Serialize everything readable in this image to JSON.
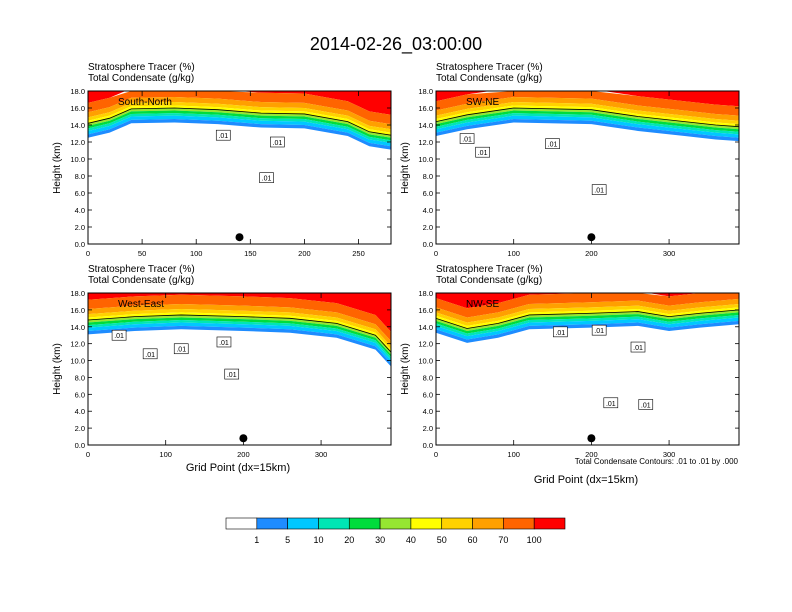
{
  "title": "2014-02-26_03:00:00",
  "header_line1": "Stratosphere Tracer   (%)",
  "header_line2": "Total Condensate   (g/kg)",
  "ylabel": "Height (km)",
  "xlabel": "Grid Point (dx=15km)",
  "contour_note": "Total Condensate Contours: .01 to .01 by .000",
  "colorbar": {
    "colors": [
      "#ffffff",
      "#1e8cff",
      "#00c8ff",
      "#00e6b4",
      "#00dc3c",
      "#96e632",
      "#ffff00",
      "#ffd200",
      "#ffa000",
      "#ff6400",
      "#ff0000"
    ],
    "labels": [
      "1",
      "5",
      "10",
      "20",
      "30",
      "40",
      "50",
      "60",
      "70",
      "100"
    ]
  },
  "chart_data": [
    {
      "type": "heatmap",
      "label": "South-North",
      "xlim": [
        0,
        280
      ],
      "xticks": [
        "0",
        "50",
        "100",
        "150",
        "200",
        "250"
      ],
      "ylim": [
        0,
        18
      ],
      "yticks": [
        "0.0",
        "2.0",
        "4.0",
        "6.0",
        "8.0",
        "10.0",
        "12.0",
        "14.0",
        "16.0",
        "18.0"
      ],
      "tropopause_km": [
        [
          0,
          14.6
        ],
        [
          20,
          15.2
        ],
        [
          40,
          16.3
        ],
        [
          80,
          16.4
        ],
        [
          120,
          16.2
        ],
        [
          160,
          15.8
        ],
        [
          200,
          15.7
        ],
        [
          240,
          14.8
        ],
        [
          260,
          13.6
        ],
        [
          280,
          13.2
        ]
      ],
      "contour_labels": [
        ".01",
        ".01",
        ".01"
      ],
      "marker_x": 140
    },
    {
      "type": "heatmap",
      "label": "SW-NE",
      "xlim": [
        0,
        390
      ],
      "xticks": [
        "0",
        "100",
        "200",
        "300"
      ],
      "ylim": [
        0,
        18
      ],
      "yticks": [
        "0.0",
        "2.0",
        "4.0",
        "6.0",
        "8.0",
        "10.0",
        "12.0",
        "14.0",
        "16.0",
        "18.0"
      ],
      "tropopause_km": [
        [
          0,
          14.8
        ],
        [
          40,
          15.6
        ],
        [
          100,
          16.4
        ],
        [
          200,
          16.2
        ],
        [
          260,
          15.4
        ],
        [
          320,
          14.8
        ],
        [
          360,
          14.4
        ],
        [
          390,
          14.2
        ]
      ],
      "contour_labels": [
        ".01",
        ".01",
        ".01",
        ".01"
      ],
      "marker_x": 200
    },
    {
      "type": "heatmap",
      "label": "West-East",
      "xlim": [
        0,
        390
      ],
      "xticks": [
        "0",
        "100",
        "200",
        "300"
      ],
      "ylim": [
        0,
        18
      ],
      "yticks": [
        "0.0",
        "2.0",
        "4.0",
        "6.0",
        "8.0",
        "10.0",
        "12.0",
        "14.0",
        "16.0",
        "18.0"
      ],
      "tropopause_km": [
        [
          0,
          15.2
        ],
        [
          60,
          15.6
        ],
        [
          120,
          15.8
        ],
        [
          200,
          15.6
        ],
        [
          260,
          15.4
        ],
        [
          320,
          14.8
        ],
        [
          370,
          13.4
        ],
        [
          390,
          11.4
        ]
      ],
      "contour_labels": [
        ".01",
        ".01",
        ".01",
        ".01",
        ".01"
      ],
      "marker_x": 200
    },
    {
      "type": "heatmap",
      "label": "NW-SE",
      "xlim": [
        0,
        390
      ],
      "xticks": [
        "0",
        "100",
        "200",
        "300"
      ],
      "ylim": [
        0,
        18
      ],
      "yticks": [
        "0.0",
        "2.0",
        "4.0",
        "6.0",
        "8.0",
        "10.0",
        "12.0",
        "14.0",
        "16.0",
        "18.0"
      ],
      "tropopause_km": [
        [
          0,
          15.4
        ],
        [
          40,
          14.2
        ],
        [
          80,
          14.8
        ],
        [
          120,
          15.8
        ],
        [
          200,
          16.0
        ],
        [
          260,
          16.2
        ],
        [
          300,
          15.6
        ],
        [
          340,
          16.0
        ],
        [
          390,
          16.4
        ]
      ],
      "contour_labels": [
        ".01",
        ".01",
        ".01",
        ".01",
        ".01"
      ],
      "marker_x": 200
    }
  ]
}
